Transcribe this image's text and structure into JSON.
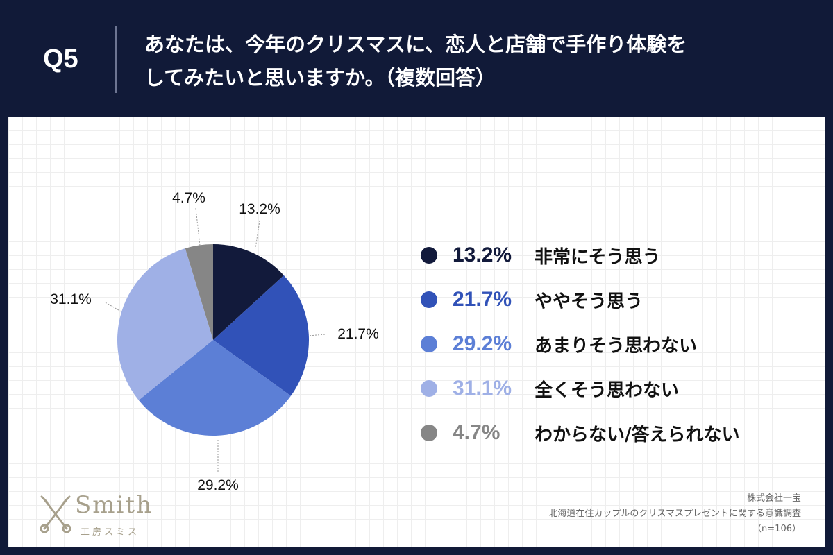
{
  "header": {
    "q_label": "Q5",
    "title_line1": "あなたは、今年のクリスマスに、恋人と店舗で手作り体験を",
    "title_line2": "してみたいと思いますか。（複数回答）"
  },
  "chart_data": {
    "type": "pie",
    "categories": [
      "非常にそう思う",
      "ややそう思う",
      "あまりそう思わない",
      "全くそう思わない",
      "わからない/答えられない"
    ],
    "values": [
      13.2,
      21.7,
      29.2,
      31.1,
      4.7
    ],
    "value_labels": [
      "13.2%",
      "21.7%",
      "29.2%",
      "31.1%",
      "4.7%"
    ],
    "colors": [
      "#121a3b",
      "#3152b8",
      "#5c7fd6",
      "#9fb0e6",
      "#868686"
    ],
    "legend_value_colors": [
      "#121a3b",
      "#3152b8",
      "#5c7fd6",
      "#9fb0e6",
      "#868686"
    ],
    "legend_position": "right"
  },
  "logo": {
    "name": "Smith",
    "sub": "工房スミス"
  },
  "credit": {
    "company": "株式会社一宝",
    "survey": "北海道在住カップルのクリスマスプレゼントに関する意識調査",
    "sample": "（n=106）"
  }
}
